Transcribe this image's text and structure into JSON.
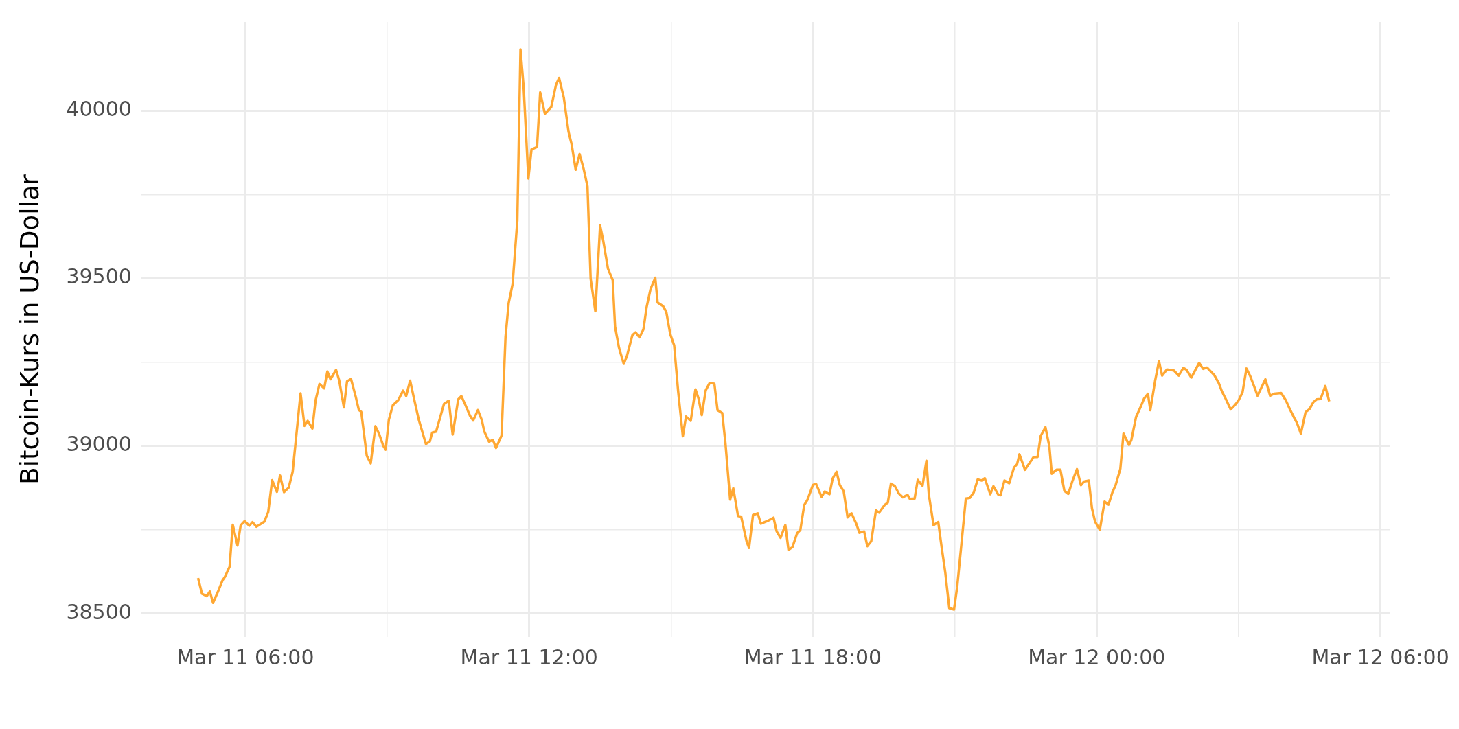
{
  "chart_data": {
    "type": "line",
    "ylabel": "Bitcoin-Kurs in US-Dollar",
    "xlim": [
      "--03-11T03:48",
      "--03-12T06:12"
    ],
    "xticks": [
      {
        "value": "--03-11T06:00",
        "label": "Mar 11 06:00"
      },
      {
        "value": "--03-11T09:00",
        "label": null
      },
      {
        "value": "--03-11T12:00",
        "label": "Mar 11 12:00"
      },
      {
        "value": "--03-11T15:00",
        "label": null
      },
      {
        "value": "--03-11T18:00",
        "label": "Mar 11 18:00"
      },
      {
        "value": "--03-11T21:00",
        "label": null
      },
      {
        "value": "--03-12T00:00",
        "label": "Mar 12 00:00"
      },
      {
        "value": "--03-12T03:00",
        "label": null
      },
      {
        "value": "--03-12T06:00",
        "label": "Mar 12 06:00"
      }
    ],
    "ylim": [
      38430,
      40265
    ],
    "yticks": [
      38500,
      {
        "value": 38750,
        "label": null
      },
      39000,
      {
        "value": 39250,
        "label": null
      },
      39500,
      {
        "value": 39750,
        "label": null
      },
      40000
    ],
    "grid": true,
    "series": [
      {
        "color": "#ffa833",
        "x": [
          "--03-11T05:00",
          "--03-11T05:05",
          "--03-11T05:11",
          "--03-11T05:15",
          "--03-11T05:19",
          "--03-11T05:25",
          "--03-11T05:31",
          "--03-11T05:34",
          "--03-11T05:40",
          "--03-11T05:44",
          "--03-11T05:50",
          "--03-11T05:54",
          "--03-11T05:59",
          "--03-11T06:05",
          "--03-11T06:09",
          "--03-11T06:14",
          "--03-11T06:24",
          "--03-11T06:29",
          "--03-11T06:34",
          "--03-11T06:40",
          "--03-11T06:44",
          "--03-11T06:49",
          "--03-11T06:55",
          "--03-11T07:00",
          "--03-11T07:10",
          "--03-11T07:15",
          "--03-11T07:19",
          "--03-11T07:25",
          "--03-11T07:29",
          "--03-11T07:34",
          "--03-11T07:40",
          "--03-11T07:44",
          "--03-11T07:48",
          "--03-11T07:55",
          "--03-11T07:59",
          "--03-11T08:05",
          "--03-11T08:09",
          "--03-11T08:14",
          "--03-11T08:20",
          "--03-11T08:24",
          "--03-11T08:27",
          "--03-11T08:34",
          "--03-11T08:39",
          "--03-11T08:45",
          "--03-11T08:50",
          "--03-11T08:55",
          "--03-11T08:58",
          "--03-11T09:02",
          "--03-11T09:07",
          "--03-11T09:14",
          "--03-11T09:20",
          "--03-11T09:24",
          "--03-11T09:29",
          "--03-11T09:34",
          "--03-11T09:40",
          "--03-11T09:49",
          "--03-11T09:54",
          "--03-11T09:57",
          "--03-11T10:02",
          "--03-11T10:12",
          "--03-11T10:18",
          "--03-11T10:23",
          "--03-11T10:30",
          "--03-11T10:34",
          "--03-11T10:39",
          "--03-11T10:45",
          "--03-11T10:49",
          "--03-11T10:55",
          "--03-11T11:00",
          "--03-11T11:03",
          "--03-11T11:09",
          "--03-11T11:14",
          "--03-11T11:18",
          "--03-11T11:25",
          "--03-11T11:30",
          "--03-11T11:34",
          "--03-11T11:39",
          "--03-11T11:45",
          "--03-11T11:49",
          "--03-11T11:53",
          "--03-11T11:59",
          "--03-11T12:03",
          "--03-11T12:10",
          "--03-11T12:14",
          "--03-11T12:20",
          "--03-11T12:28",
          "--03-11T12:34",
          "--03-11T12:38",
          "--03-11T12:44",
          "--03-11T12:50",
          "--03-11T12:54",
          "--03-11T12:59",
          "--03-11T13:04",
          "--03-11T13:09",
          "--03-11T13:14",
          "--03-11T13:18",
          "--03-11T13:24",
          "--03-11T13:30",
          "--03-11T13:34",
          "--03-11T13:40",
          "--03-11T13:46",
          "--03-11T13:49",
          "--03-11T13:54",
          "--03-11T14:00",
          "--03-11T14:04",
          "--03-11T14:11",
          "--03-11T14:15",
          "--03-11T14:20",
          "--03-11T14:25",
          "--03-11T14:29",
          "--03-11T14:34",
          "--03-11T14:40",
          "--03-11T14:43",
          "--03-11T14:50",
          "--03-11T14:54",
          "--03-11T14:59",
          "--03-11T15:04",
          "--03-11T15:09",
          "--03-11T15:15",
          "--03-11T15:19",
          "--03-11T15:25",
          "--03-11T15:31",
          "--03-11T15:35",
          "--03-11T15:39",
          "--03-11T15:44",
          "--03-11T15:49",
          "--03-11T15:55",
          "--03-11T15:59",
          "--03-11T16:05",
          "--03-11T16:09",
          "--03-11T16:15",
          "--03-11T16:19",
          "--03-11T16:25",
          "--03-11T16:29",
          "--03-11T16:36",
          "--03-11T16:39",
          "--03-11T16:44",
          "--03-11T16:50",
          "--03-11T16:54",
          "--03-11T17:04",
          "--03-11T17:10",
          "--03-11T17:14",
          "--03-11T17:19",
          "--03-11T17:25",
          "--03-11T17:29",
          "--03-11T17:34",
          "--03-11T17:40",
          "--03-11T17:44",
          "--03-11T17:49",
          "--03-11T17:53",
          "--03-11T18:00",
          "--03-11T18:04",
          "--03-11T18:11",
          "--03-11T18:15",
          "--03-11T18:21",
          "--03-11T18:25",
          "--03-11T18:30",
          "--03-11T18:34",
          "--03-11T18:39",
          "--03-11T18:44",
          "--03-11T18:49",
          "--03-11T18:55",
          "--03-11T18:59",
          "--03-11T19:05",
          "--03-11T19:09",
          "--03-11T19:14",
          "--03-11T19:20",
          "--03-11T19:24",
          "--03-11T19:31",
          "--03-11T19:35",
          "--03-11T19:39",
          "--03-11T19:44",
          "--03-11T19:49",
          "--03-11T19:54",
          "--03-11T20:00",
          "--03-11T20:03",
          "--03-11T20:09",
          "--03-11T20:13",
          "--03-11T20:19",
          "--03-11T20:24",
          "--03-11T20:27",
          "--03-11T20:33",
          "--03-11T20:39",
          "--03-11T20:43",
          "--03-11T20:48",
          "--03-11T20:53",
          "--03-11T20:59",
          "--03-11T21:03",
          "--03-11T21:08",
          "--03-11T21:14",
          "--03-11T21:19",
          "--03-11T21:24",
          "--03-11T21:29",
          "--03-11T21:34",
          "--03-11T21:38",
          "--03-11T21:45",
          "--03-11T21:49",
          "--03-11T21:55",
          "--03-11T21:58",
          "--03-11T22:03",
          "--03-11T22:09",
          "--03-11T22:15",
          "--03-11T22:19",
          "--03-11T22:22",
          "--03-11T22:29",
          "--03-11T22:40",
          "--03-11T22:45",
          "--03-11T22:49",
          "--03-11T22:55",
          "--03-11T23:00",
          "--03-11T23:03",
          "--03-11T23:09",
          "--03-11T23:14",
          "--03-11T23:19",
          "--03-11T23:24",
          "--03-11T23:29",
          "--03-11T23:35",
          "--03-11T23:40",
          "--03-11T23:44",
          "--03-11T23:50",
          "--03-11T23:54",
          "--03-11T23:58",
          "--03-12T00:04",
          "--03-12T00:10",
          "--03-12T00:15",
          "--03-12T00:20",
          "--03-12T00:24",
          "--03-12T00:30",
          "--03-12T00:34",
          "--03-12T00:41",
          "--03-12T00:44",
          "--03-12T00:50",
          "--03-12T00:56",
          "--03-12T01:00",
          "--03-12T01:05",
          "--03-12T01:08",
          "--03-12T01:14",
          "--03-12T01:19",
          "--03-12T01:23",
          "--03-12T01:29",
          "--03-12T01:38",
          "--03-12T01:44",
          "--03-12T01:50",
          "--03-12T01:54",
          "--03-12T02:00",
          "--03-12T02:10",
          "--03-12T02:15",
          "--03-12T02:20",
          "--03-12T02:29",
          "--03-12T02:35",
          "--03-12T02:39",
          "--03-12T02:44",
          "--03-12T02:50",
          "--03-12T02:55",
          "--03-12T03:00",
          "--03-12T03:05",
          "--03-12T03:10",
          "--03-12T03:15",
          "--03-12T03:20",
          "--03-12T03:24",
          "--03-12T03:34",
          "--03-12T03:40",
          "--03-12T03:45",
          "--03-12T03:54",
          "--03-12T04:00",
          "--03-12T04:05",
          "--03-12T04:11",
          "--03-12T04:14",
          "--03-12T04:19",
          "--03-12T04:25",
          "--03-12T04:30",
          "--03-12T04:35",
          "--03-12T04:39",
          "--03-12T04:44",
          "--03-12T04:50",
          "--03-12T04:55"
        ],
        "values": [
          38606,
          38559,
          38552,
          38566,
          38532,
          38564,
          38599,
          38609,
          38640,
          38765,
          38703,
          38763,
          38776,
          38762,
          38773,
          38759,
          38774,
          38803,
          38898,
          38863,
          38912,
          38862,
          38876,
          38923,
          39157,
          39060,
          39075,
          39052,
          39135,
          39185,
          39172,
          39222,
          39199,
          39227,
          39196,
          39115,
          39193,
          39200,
          39147,
          39107,
          39102,
          38971,
          38948,
          39059,
          39034,
          39000,
          38989,
          39078,
          39121,
          39137,
          39165,
          39149,
          39195,
          39141,
          39078,
          39006,
          39013,
          39040,
          39043,
          39126,
          39135,
          39034,
          39139,
          39149,
          39123,
          39090,
          39076,
          39107,
          39077,
          39044,
          39013,
          39018,
          38994,
          39031,
          39325,
          39426,
          39483,
          39673,
          40183,
          40071,
          39798,
          39885,
          39892,
          40055,
          39991,
          40011,
          40077,
          40098,
          40039,
          39937,
          39899,
          39824,
          39871,
          39828,
          39775,
          39499,
          39402,
          39658,
          39612,
          39529,
          39495,
          39356,
          39293,
          39245,
          39268,
          39331,
          39339,
          39324,
          39348,
          39414,
          39468,
          39502,
          39428,
          39417,
          39400,
          39334,
          39300,
          39164,
          39029,
          39088,
          39075,
          39169,
          39141,
          39092,
          39166,
          39188,
          39186,
          39107,
          39098,
          39009,
          38840,
          38874,
          38791,
          38789,
          38714,
          38696,
          38794,
          38799,
          38768,
          38778,
          38786,
          38745,
          38726,
          38764,
          38690,
          38698,
          38740,
          38749,
          38824,
          38839,
          38884,
          38887,
          38848,
          38864,
          38856,
          38903,
          38923,
          38884,
          38865,
          38787,
          38799,
          38768,
          38741,
          38745,
          38701,
          38716,
          38808,
          38801,
          38824,
          38831,
          38888,
          38880,
          38858,
          38847,
          38854,
          38842,
          38843,
          38899,
          38881,
          38956,
          38856,
          38764,
          38773,
          38703,
          38621,
          38516,
          38512,
          38579,
          38698,
          38843,
          38845,
          38861,
          38900,
          38897,
          38904,
          38856,
          38880,
          38855,
          38853,
          38897,
          38889,
          38935,
          38946,
          38975,
          38929,
          38967,
          38967,
          39030,
          39056,
          38998,
          38917,
          38929,
          38929,
          38866,
          38857,
          38894,
          38931,
          38883,
          38894,
          38897,
          38814,
          38774,
          38750,
          38834,
          38825,
          38862,
          38883,
          38932,
          39037,
          39003,
          39018,
          39087,
          39118,
          39141,
          39156,
          39107,
          39193,
          39253,
          39210,
          39228,
          39225,
          39210,
          39233,
          39227,
          39204,
          39248,
          39230,
          39234,
          39212,
          39187,
          39162,
          39139,
          39109,
          39121,
          39136,
          39160,
          39231,
          39207,
          39176,
          39150,
          39199,
          39150,
          39156,
          39158,
          39136,
          39110,
          39082,
          39069,
          39037,
          39101,
          39110,
          39131,
          39139,
          39140,
          39179,
          39133
        ]
      }
    ]
  }
}
